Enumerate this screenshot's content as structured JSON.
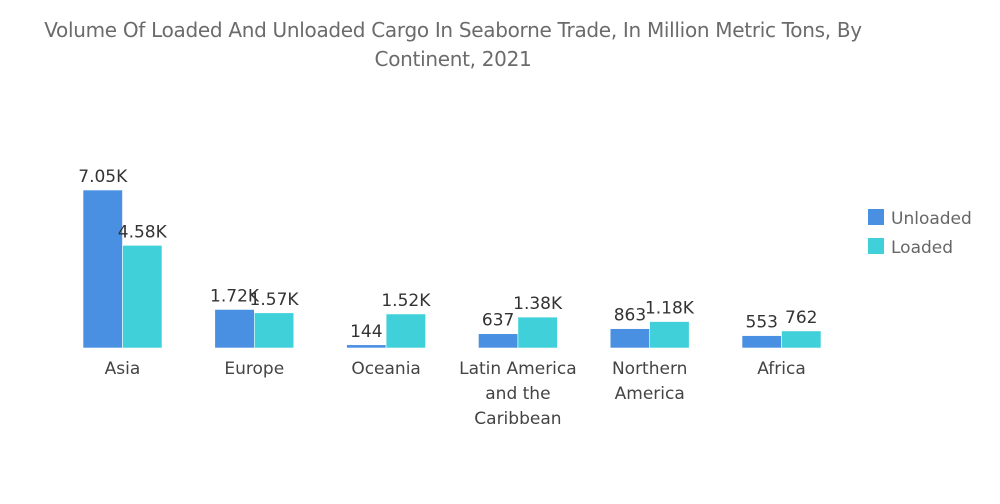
{
  "chart_data": {
    "type": "bar",
    "title": "Volume Of Loaded And Unloaded Cargo In Seaborne Trade, In Million Metric Tons, By Continent, 2021",
    "categories": [
      [
        "Asia"
      ],
      [
        "Europe"
      ],
      [
        "Oceania"
      ],
      [
        "Latin America",
        "and the",
        "Caribbean"
      ],
      [
        "Northern",
        "America"
      ],
      [
        "Africa"
      ]
    ],
    "series": [
      {
        "name": "Unloaded",
        "color": "#4a90e2",
        "values": [
          7050,
          1720,
          144,
          637,
          863,
          553
        ],
        "labels": [
          "7.05K",
          "1.72K",
          "144",
          "637",
          "863",
          "553"
        ]
      },
      {
        "name": "Loaded",
        "color": "#3fd0d9",
        "values": [
          4580,
          1570,
          1520,
          1380,
          1180,
          762
        ],
        "labels": [
          "4.58K",
          "1.57K",
          "1.52K",
          "1.38K",
          "1.18K",
          "762"
        ]
      }
    ],
    "xlabel": "",
    "ylabel": "",
    "ylim": [
      0,
      7050
    ],
    "grid": false,
    "y_axis_visible": false,
    "legend": "right"
  }
}
